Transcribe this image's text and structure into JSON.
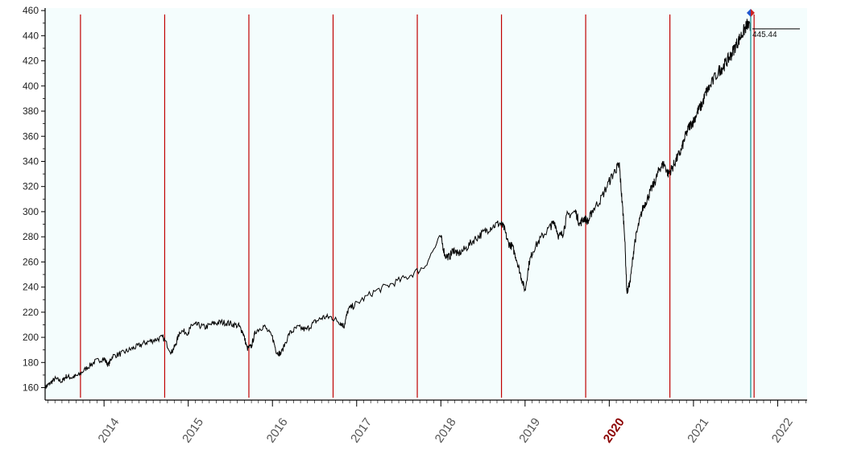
{
  "chart_data": {
    "type": "line",
    "title": "",
    "xlabel": "",
    "ylabel": "",
    "xlim": [
      2013.3,
      2022.35
    ],
    "ylim": [
      152,
      462
    ],
    "grid": false,
    "y_ticks": [
      "160",
      "180",
      "200",
      "220",
      "240",
      "260",
      "280",
      "300",
      "320",
      "340",
      "360",
      "380",
      "400",
      "420",
      "440",
      "460"
    ],
    "x_ticks": [
      {
        "label": "2014",
        "value": 2014,
        "highlight": false
      },
      {
        "label": "2015",
        "value": 2015,
        "highlight": false
      },
      {
        "label": "2016",
        "value": 2016,
        "highlight": false
      },
      {
        "label": "2017",
        "value": 2017,
        "highlight": false
      },
      {
        "label": "2018",
        "value": 2018,
        "highlight": false
      },
      {
        "label": "2019",
        "value": 2019,
        "highlight": false
      },
      {
        "label": "2020",
        "value": 2020,
        "highlight": true
      },
      {
        "label": "2021",
        "value": 2021,
        "highlight": false
      },
      {
        "label": "2022",
        "value": 2022,
        "highlight": false
      }
    ],
    "vertical_markers": [
      2013.72,
      2014.72,
      2015.72,
      2016.72,
      2017.72,
      2018.72,
      2019.72,
      2020.72,
      2021.72
    ],
    "current_marker": 2021.68,
    "last_value_label": "445.44",
    "last_value": 445.44,
    "series": [
      {
        "color": "#000000",
        "x": [
          2013.3,
          2013.35,
          2013.42,
          2013.5,
          2013.55,
          2013.62,
          2013.7,
          2013.8,
          2013.9,
          2014.0,
          2014.05,
          2014.1,
          2014.2,
          2014.3,
          2014.4,
          2014.5,
          2014.6,
          2014.7,
          2014.8,
          2014.85,
          2014.9,
          2015.0,
          2015.05,
          2015.1,
          2015.2,
          2015.3,
          2015.4,
          2015.5,
          2015.6,
          2015.65,
          2015.7,
          2015.75,
          2015.8,
          2015.9,
          2016.0,
          2016.05,
          2016.1,
          2016.2,
          2016.3,
          2016.4,
          2016.5,
          2016.6,
          2016.7,
          2016.8,
          2016.85,
          2016.9,
          2017.0,
          2017.2,
          2017.4,
          2017.6,
          2017.8,
          2018.0,
          2018.05,
          2018.1,
          2018.15,
          2018.2,
          2018.3,
          2018.4,
          2018.5,
          2018.6,
          2018.7,
          2018.75,
          2018.8,
          2018.85,
          2018.9,
          2018.95,
          2019.0,
          2019.05,
          2019.1,
          2019.2,
          2019.3,
          2019.35,
          2019.4,
          2019.45,
          2019.5,
          2019.6,
          2019.65,
          2019.7,
          2019.75,
          2019.8,
          2019.9,
          2020.0,
          2020.08,
          2020.12,
          2020.15,
          2020.18,
          2020.21,
          2020.25,
          2020.3,
          2020.35,
          2020.4,
          2020.45,
          2020.5,
          2020.55,
          2020.6,
          2020.65,
          2020.7,
          2020.75,
          2020.8,
          2020.85,
          2020.9,
          2020.95,
          2021.0,
          2021.05,
          2021.1,
          2021.15,
          2021.2,
          2021.3,
          2021.35,
          2021.4,
          2021.45,
          2021.5,
          2021.55,
          2021.6,
          2021.64,
          2021.68
        ],
        "values": [
          160,
          163,
          167,
          165,
          169,
          168,
          170,
          176,
          181,
          183,
          178,
          185,
          187,
          190,
          193,
          196,
          198,
          200,
          188,
          194,
          205,
          204,
          210,
          210,
          208,
          211,
          212,
          211,
          209,
          204,
          191,
          193,
          205,
          209,
          200,
          188,
          187,
          203,
          208,
          206,
          212,
          216,
          216,
          212,
          209,
          222,
          227,
          236,
          242,
          248,
          256,
          280,
          265,
          264,
          270,
          266,
          271,
          278,
          283,
          288,
          291,
          287,
          275,
          272,
          262,
          249,
          237,
          260,
          270,
          280,
          288,
          292,
          280,
          283,
          297,
          300,
          290,
          295,
          292,
          301,
          310,
          324,
          334,
          337,
          310,
          285,
          235,
          245,
          275,
          290,
          303,
          310,
          318,
          325,
          335,
          338,
          330,
          335,
          342,
          348,
          359,
          368,
          372,
          380,
          385,
          395,
          400,
          412,
          415,
          420,
          425,
          432,
          438,
          444,
          449,
          445
        ]
      }
    ]
  }
}
